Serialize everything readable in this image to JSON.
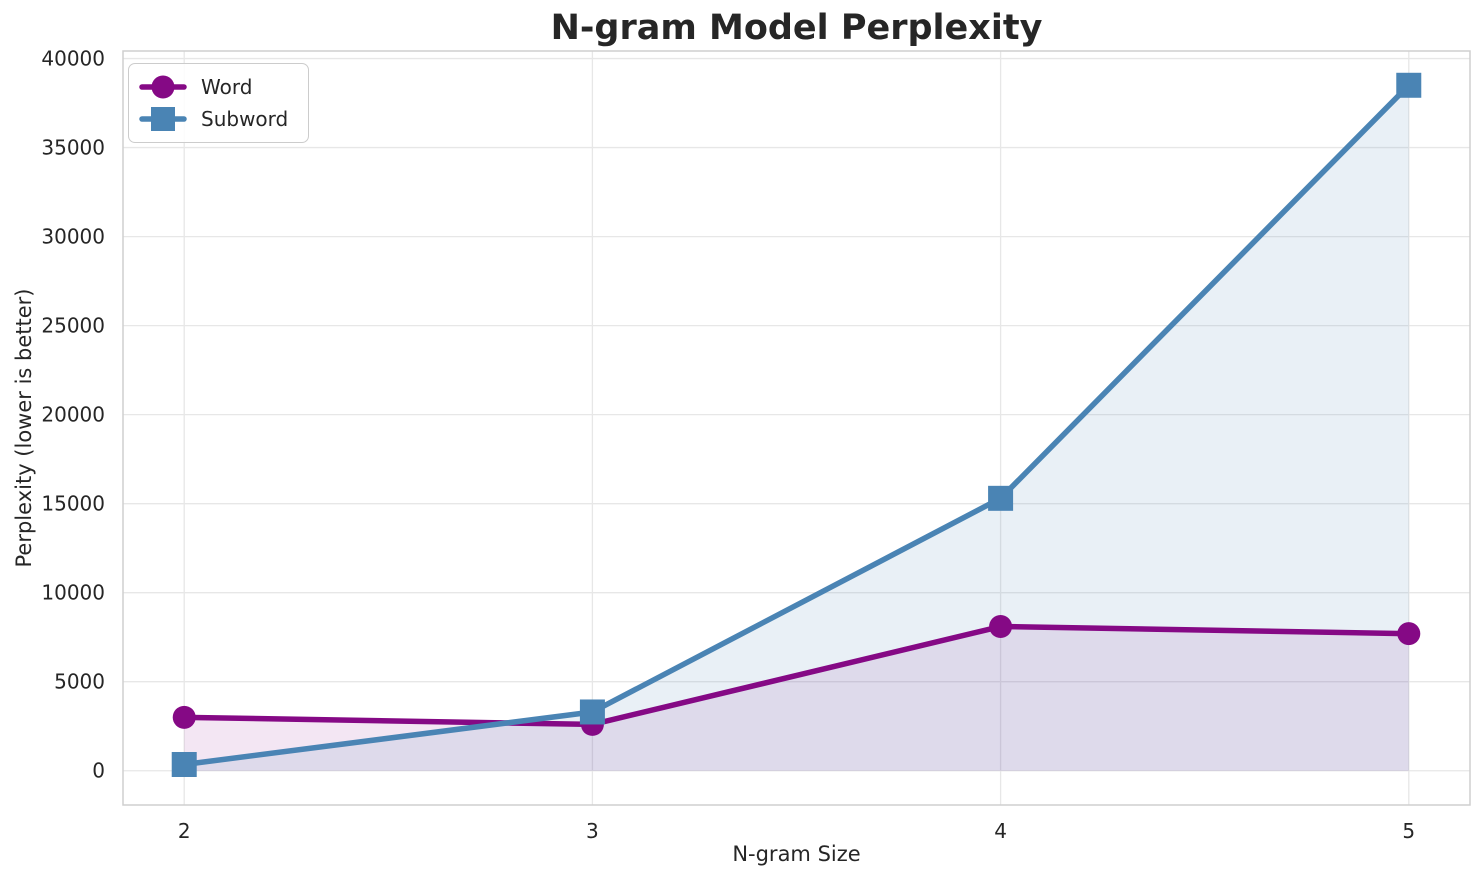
{
  "chart_data": {
    "type": "line",
    "title": "N-gram Model Perplexity",
    "xlabel": "N-gram Size",
    "ylabel": "Perplexity (lower is better)",
    "x": [
      2,
      3,
      4,
      5
    ],
    "x_tick_labels": [
      "2",
      "3",
      "4",
      "5"
    ],
    "y_ticks": [
      0,
      5000,
      10000,
      15000,
      20000,
      25000,
      30000,
      35000,
      40000
    ],
    "y_tick_labels": [
      "0",
      "5000",
      "10000",
      "15000",
      "20000",
      "25000",
      "30000",
      "35000",
      "40000"
    ],
    "xlim": [
      1.85,
      5.15
    ],
    "ylim": [
      -1925,
      40425
    ],
    "grid": true,
    "legend_position": "upper left",
    "fill_baseline": 0,
    "series": [
      {
        "name": "Word",
        "values": [
          3000,
          2600,
          8100,
          7700
        ],
        "color": "#850985",
        "marker": "circle",
        "fill_opacity": 0.1
      },
      {
        "name": "Subword",
        "values": [
          350,
          3300,
          15300,
          38500
        ],
        "color": "#4a84b4",
        "marker": "square",
        "fill_opacity": 0.12
      }
    ],
    "style": {
      "grid_color": "#e7e7e7",
      "spine_color": "#cfcfcf",
      "text_color": "#262626",
      "background": "#ffffff"
    }
  }
}
